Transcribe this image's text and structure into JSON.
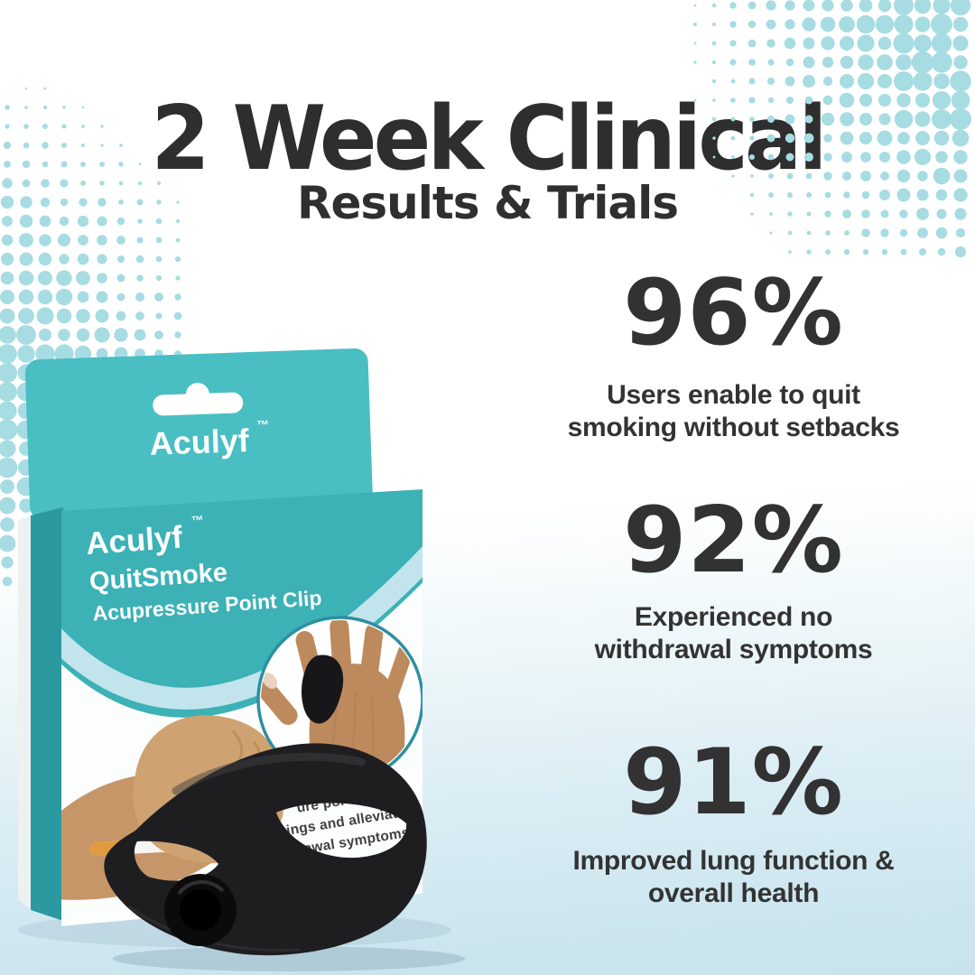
{
  "header": {
    "title": "2 Week Clinical",
    "subtitle": "Results & Trials"
  },
  "stats": [
    {
      "value": "96%",
      "lines": [
        "Users enable to quit",
        "smoking without setbacks"
      ]
    },
    {
      "value": "92%",
      "lines": [
        "Experienced no",
        "withdrawal symptoms"
      ]
    },
    {
      "value": "91%",
      "lines": [
        "Improved lung function &",
        "overall health"
      ]
    }
  ],
  "product": {
    "box": {
      "brand": "Aculyf",
      "tm": "™",
      "front_line1": "QuitSmoke",
      "front_line2": "Acupressure Point Clip"
    },
    "visible_box_copy": {
      "line1": "ure poi",
      "line2": "vings and alleviate",
      "line3": "thdrawal symptoms."
    }
  },
  "colors": {
    "box_teal": "#3cb1b6",
    "flap_teal": "#49bec3",
    "side_teal": "#2b99a0",
    "ring_teal": "#2d8fa1",
    "dots": "#a6dce2",
    "clip_black": "#1e1e21",
    "ink": "#2e2e2e",
    "bg_bottom": "#c9e3ed"
  }
}
